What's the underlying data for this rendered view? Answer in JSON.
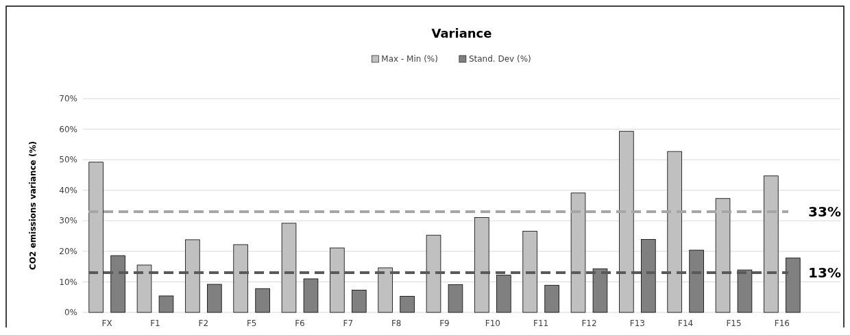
{
  "chart_data": {
    "type": "bar",
    "title": "Variance",
    "ylabel": "CO2 emissions variance (%)",
    "categories": [
      "FX",
      "F1",
      "F2",
      "F5",
      "F6",
      "F7",
      "F8",
      "F9",
      "F10",
      "F11",
      "F12",
      "F13",
      "F14",
      "F15",
      "F16"
    ],
    "series": [
      {
        "name": "Max - Min (%)",
        "color": "#c0c0c0",
        "values": [
          49.2,
          15.5,
          23.8,
          22.2,
          29.2,
          21.1,
          14.6,
          25.3,
          31.1,
          26.6,
          39.1,
          59.3,
          52.7,
          37.3,
          44.7
        ]
      },
      {
        "name": "Stand. Dev (%)",
        "color": "#808080",
        "values": [
          18.6,
          5.4,
          9.2,
          7.8,
          11.0,
          7.3,
          5.3,
          9.1,
          12.2,
          8.9,
          14.3,
          23.9,
          20.4,
          13.9,
          17.8
        ]
      }
    ],
    "ylim": [
      0,
      70
    ],
    "yticks": [
      {
        "value": 0,
        "label": "0%"
      },
      {
        "value": 10,
        "label": "10%"
      },
      {
        "value": 20,
        "label": "20%"
      },
      {
        "value": 30,
        "label": "30%"
      },
      {
        "value": 40,
        "label": "40%"
      },
      {
        "value": 50,
        "label": "50%"
      },
      {
        "value": 60,
        "label": "60%"
      },
      {
        "value": 70,
        "label": "70%"
      }
    ],
    "ref_lines": [
      {
        "axis": "y",
        "value": 33,
        "label": "33%",
        "color": "#a6a6a6",
        "line_style": "dashed"
      },
      {
        "axis": "y",
        "value": 13,
        "label": "13%",
        "color": "#595959",
        "line_style": "dashed"
      }
    ],
    "grid": "y",
    "legend": "top"
  }
}
